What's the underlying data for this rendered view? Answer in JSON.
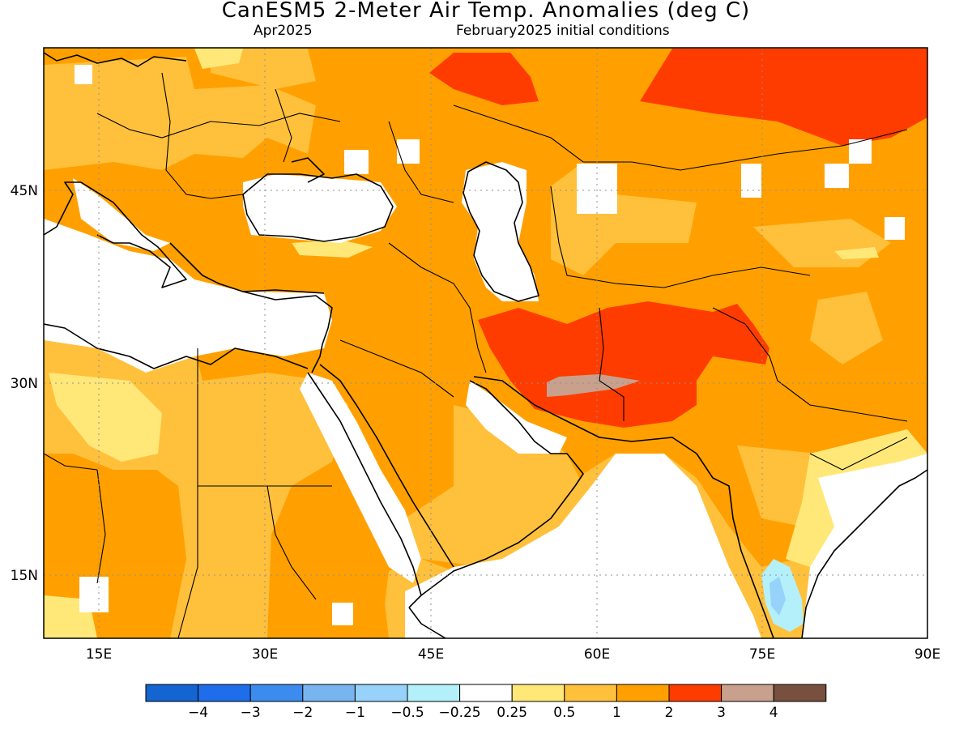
{
  "header": {
    "title": "CanESM5 2-Meter Air Temp. Anomalies (deg C)",
    "valid_month": "Apr2025",
    "init": "February2025 initial conditions"
  },
  "axes": {
    "lon_ticks": [
      "15E",
      "30E",
      "45E",
      "60E",
      "75E",
      "90E"
    ],
    "lat_ticks": [
      "45N",
      "30N",
      "15N"
    ]
  },
  "colorbar": {
    "colors": [
      "#1464d2",
      "#1e6eeb",
      "#3c8cf0",
      "#78b4f0",
      "#96d2fa",
      "#b4f0fa",
      "#ffffff",
      "#ffe878",
      "#ffc03c",
      "#ffa000",
      "#ff3c00",
      "#c8a08c",
      "#785040"
    ],
    "labels": [
      "-4",
      "-3",
      "-2",
      "-1",
      "-0.5",
      "-0.25",
      "0.25",
      "0.5",
      "1",
      "2",
      "3",
      "4"
    ]
  },
  "map_data": {
    "lon_range": [
      10,
      90
    ],
    "lat_range": [
      10,
      56
    ],
    "regions": [
      {
        "category": "1 to 2",
        "color": "#ffa000"
      },
      {
        "category": "0.5 to 1",
        "color": "#ffc03c"
      },
      {
        "category": "0.25 to 0.5",
        "color": "#ffe878"
      },
      {
        "category": "2 to 3",
        "color": "#ff3c00"
      },
      {
        "category": "3 to 4",
        "color": "#c8a08c"
      },
      {
        "category": "-1 to -0.5",
        "color": "#96d2fa"
      },
      {
        "category": "-0.5 to -0.25",
        "color": "#b4f0fa"
      }
    ]
  }
}
